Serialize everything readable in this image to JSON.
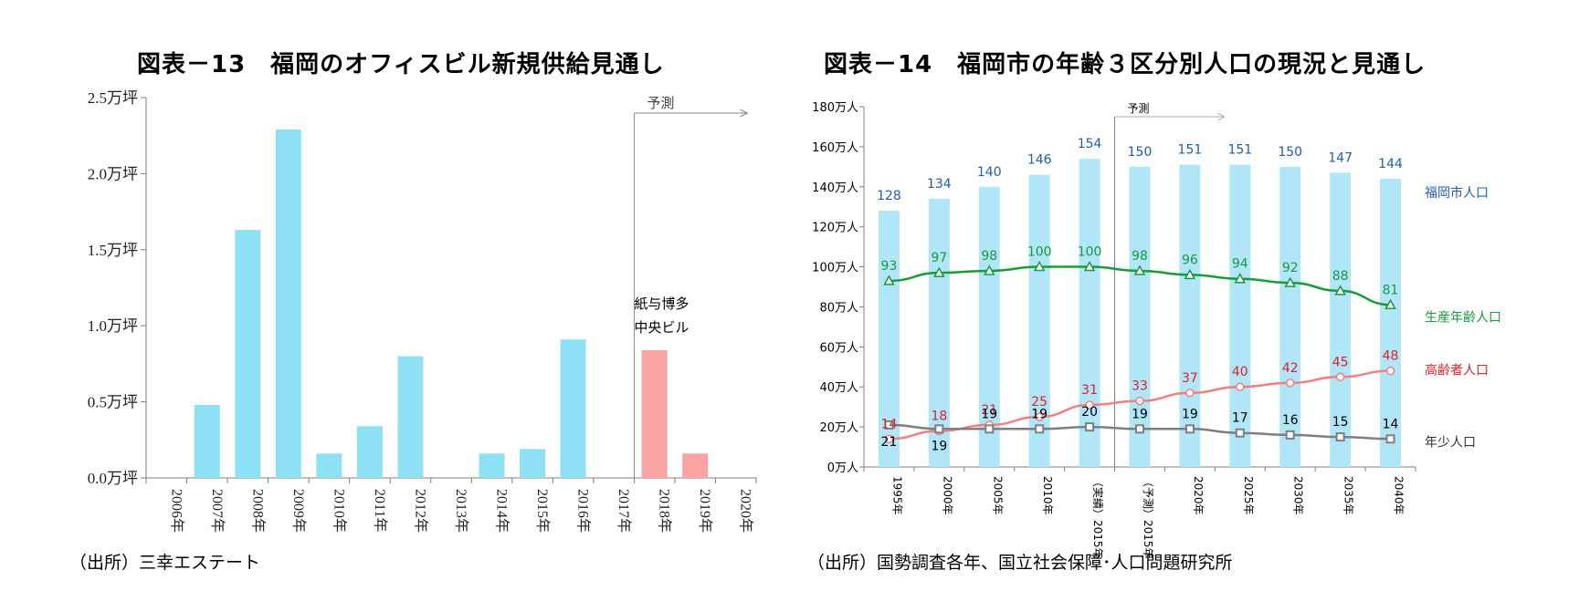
{
  "left": {
    "title": "図表－13　福岡のオフィスビル新規供給見通し",
    "source": "（出所）三幸エステート",
    "chart_data": {
      "type": "bar",
      "categories": [
        "2006年",
        "2007年",
        "2008年",
        "2009年",
        "2010年",
        "2011年",
        "2012年",
        "2013年",
        "2014年",
        "2015年",
        "2016年",
        "2017年",
        "2018年",
        "2019年",
        "2020年"
      ],
      "values": [
        0,
        0.48,
        1.63,
        2.29,
        0.16,
        0.34,
        0.8,
        0,
        0.16,
        0.19,
        0.91,
        0,
        0.84,
        0.16,
        0
      ],
      "forecast": [
        false,
        false,
        false,
        false,
        false,
        false,
        false,
        false,
        false,
        false,
        false,
        false,
        true,
        true,
        true
      ],
      "ylim": [
        0,
        2.5
      ],
      "yticks": [
        "0.0万坪",
        "0.5万坪",
        "1.0万坪",
        "1.5万坪",
        "2.0万坪",
        "2.5万坪"
      ],
      "forecast_label": "予測",
      "annotation": [
        "紙与博多",
        "中央ビル"
      ],
      "colors": {
        "actual": "#8ee0f5",
        "forecast": "#f9a3a3",
        "axis": "#7f7f7f"
      }
    }
  },
  "right": {
    "title": "図表－14　福岡市の年齢３区分別人口の現況と見通し",
    "source": "（出所）国勢調査各年、国立社会保障･人口問題研究所",
    "chart_data": {
      "type": "bar",
      "categories": [
        "1995年",
        "2000年",
        "2005年",
        "2010年",
        "（実績）2015年",
        "（予測）2015年",
        "2020年",
        "2025年",
        "2030年",
        "2035年",
        "2040年"
      ],
      "ylim": [
        0,
        180
      ],
      "yticks": [
        "0万人",
        "20万人",
        "40万人",
        "60万人",
        "80万人",
        "100万人",
        "120万人",
        "140万人",
        "160万人",
        "180万人"
      ],
      "forecast_label": "予測",
      "series": [
        {
          "name": "福岡市人口",
          "type": "bar",
          "color": "#b0e6f7",
          "label_color": "#1f5fa8",
          "values": [
            128,
            134,
            140,
            146,
            154,
            150,
            151,
            151,
            150,
            147,
            144
          ]
        },
        {
          "name": "生産年齢人口",
          "type": "line",
          "marker": "triangle",
          "color": "#1a9a3c",
          "values": [
            93,
            97,
            98,
            100,
            100,
            98,
            96,
            94,
            92,
            88,
            81
          ]
        },
        {
          "name": "高齢者人口",
          "type": "line",
          "marker": "circle",
          "color": "#f08080",
          "label_color": "#e0202a",
          "values": [
            14,
            18,
            21,
            25,
            31,
            33,
            37,
            40,
            42,
            45,
            48
          ]
        },
        {
          "name": "年少人口",
          "type": "line",
          "marker": "square",
          "color": "#7f7f7f",
          "label_color": "#000000",
          "values": [
            21,
            19,
            19,
            19,
            20,
            19,
            19,
            17,
            16,
            15,
            14
          ]
        }
      ]
    }
  }
}
